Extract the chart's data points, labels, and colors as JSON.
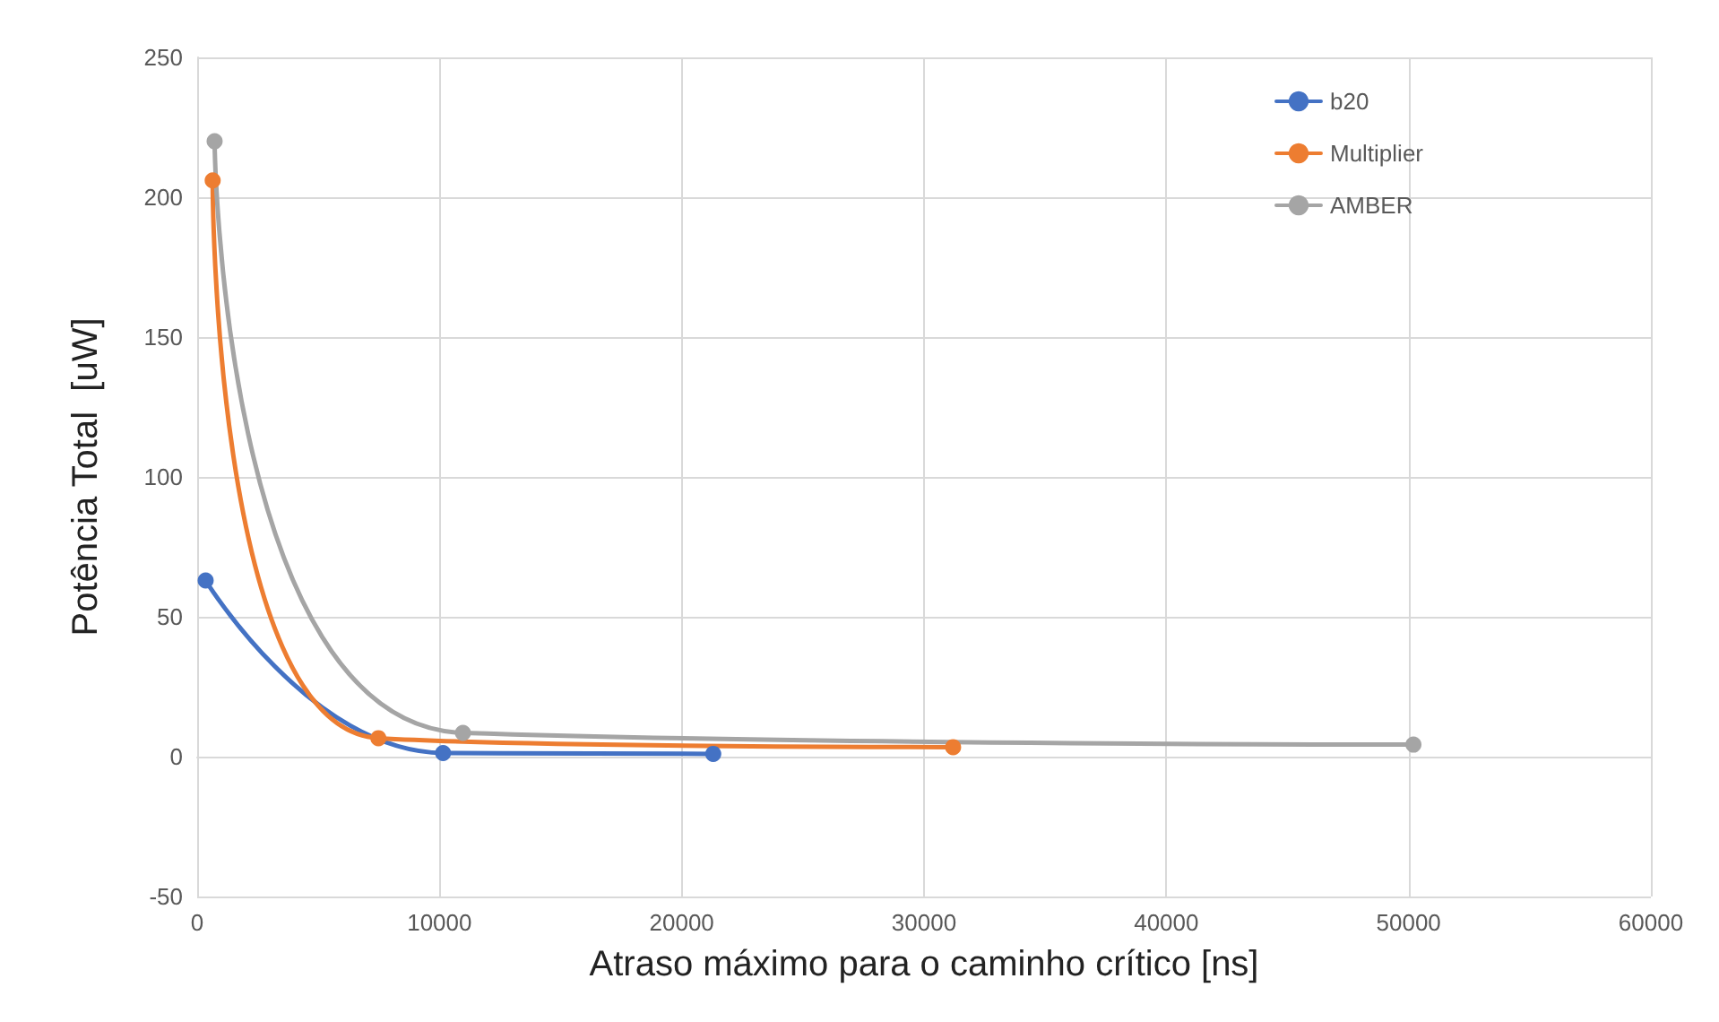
{
  "chart_data": {
    "type": "line",
    "xlabel": "Atraso máximo para o caminho crítico [ns]",
    "ylabel": "Potência Total  [uW]",
    "series": [
      {
        "name": "b20",
        "color": "#4472c4",
        "x": [
          350,
          10150,
          21300
        ],
        "values": [
          63,
          1.3,
          1
        ]
      },
      {
        "name": "Multiplier",
        "color": "#ed7d31",
        "x": [
          640,
          7480,
          31200
        ],
        "values": [
          206,
          6.6,
          3.4
        ]
      },
      {
        "name": "AMBER",
        "color": "#a5a5a5",
        "x": [
          720,
          10970,
          50200
        ],
        "values": [
          220,
          8.5,
          4.3
        ]
      }
    ],
    "xlim": [
      0,
      60000
    ],
    "xticks": [
      0,
      10000,
      20000,
      30000,
      40000,
      50000,
      60000
    ],
    "ylim": [
      -50,
      250
    ],
    "yticks": [
      -50,
      0,
      50,
      100,
      150,
      200,
      250
    ],
    "grid": true,
    "legend": "top right",
    "marker": "circle",
    "line_style": "solid"
  }
}
